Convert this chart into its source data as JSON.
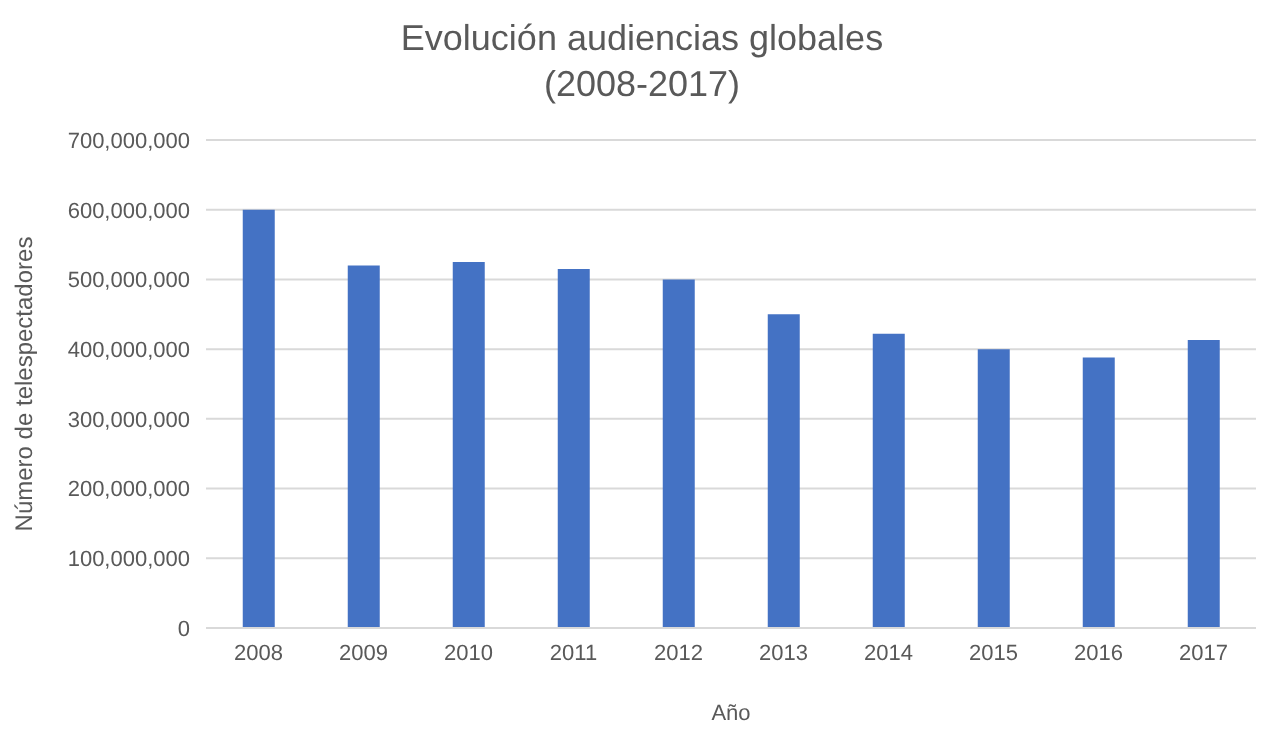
{
  "chart_data": {
    "type": "bar",
    "title": "Evolución audiencias globales",
    "subtitle": "(2008-2017)",
    "xlabel": "Año",
    "ylabel": "Número de telespectadores",
    "categories": [
      "2008",
      "2009",
      "2010",
      "2011",
      "2012",
      "2013",
      "2014",
      "2015",
      "2016",
      "2017"
    ],
    "values": [
      600000000,
      520000000,
      525000000,
      515000000,
      500000000,
      450000000,
      422000000,
      400000000,
      388000000,
      413000000
    ],
    "color": "#4472c4",
    "ylim": [
      0,
      700000000
    ],
    "yticks": [
      0,
      {
        "value": 100000000,
        "label": "100,000,000"
      },
      {
        "value": 200000000,
        "label": "200,000,000"
      },
      {
        "value": 300000000,
        "label": "300,000,000"
      },
      {
        "value": 400000000,
        "label": "400,000,000"
      },
      {
        "value": 500000000,
        "label": "500,000,000"
      },
      {
        "value": 600000000,
        "label": "600,000,000"
      },
      {
        "value": 700000000,
        "label": "700,000,000"
      }
    ],
    "grid": "y"
  }
}
